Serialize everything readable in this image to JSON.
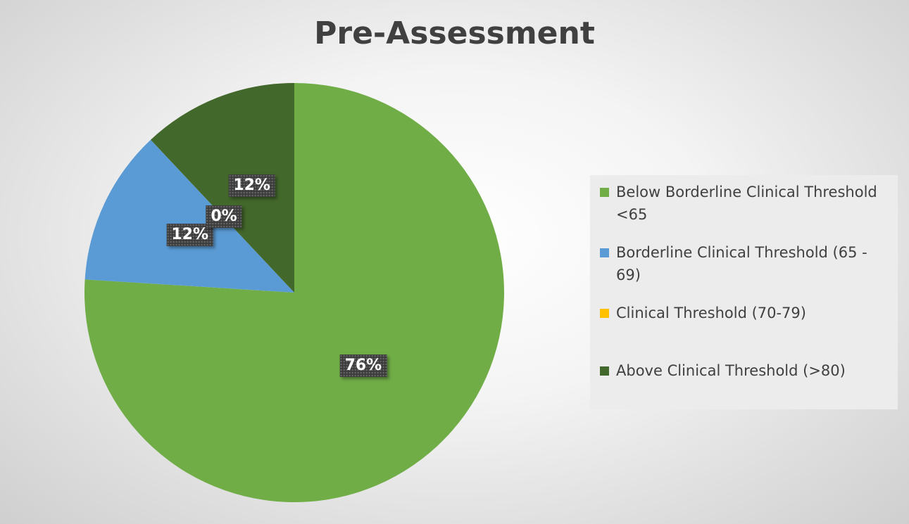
{
  "chart_data": {
    "type": "pie",
    "title": "Pre-Assessment",
    "slices": [
      {
        "label": "Below Borderline Clinical Threshold <65",
        "value": 76,
        "data_label": "76%",
        "color": "#70ad47"
      },
      {
        "label": "Borderline Clinical Threshold (65 - 69)",
        "value": 12,
        "data_label": "12%",
        "color": "#5b9bd5"
      },
      {
        "label": "Clinical Threshold (70-79)",
        "value": 0,
        "data_label": "0%",
        "color": "#ffc000"
      },
      {
        "label": "Above Clinical Threshold (>80)",
        "value": 12,
        "data_label": "12%",
        "color": "#43682b"
      }
    ],
    "start_angle_deg": 0,
    "direction": "clockwise",
    "legend_position": "right",
    "label_style": "dark boxes with white bold text"
  }
}
